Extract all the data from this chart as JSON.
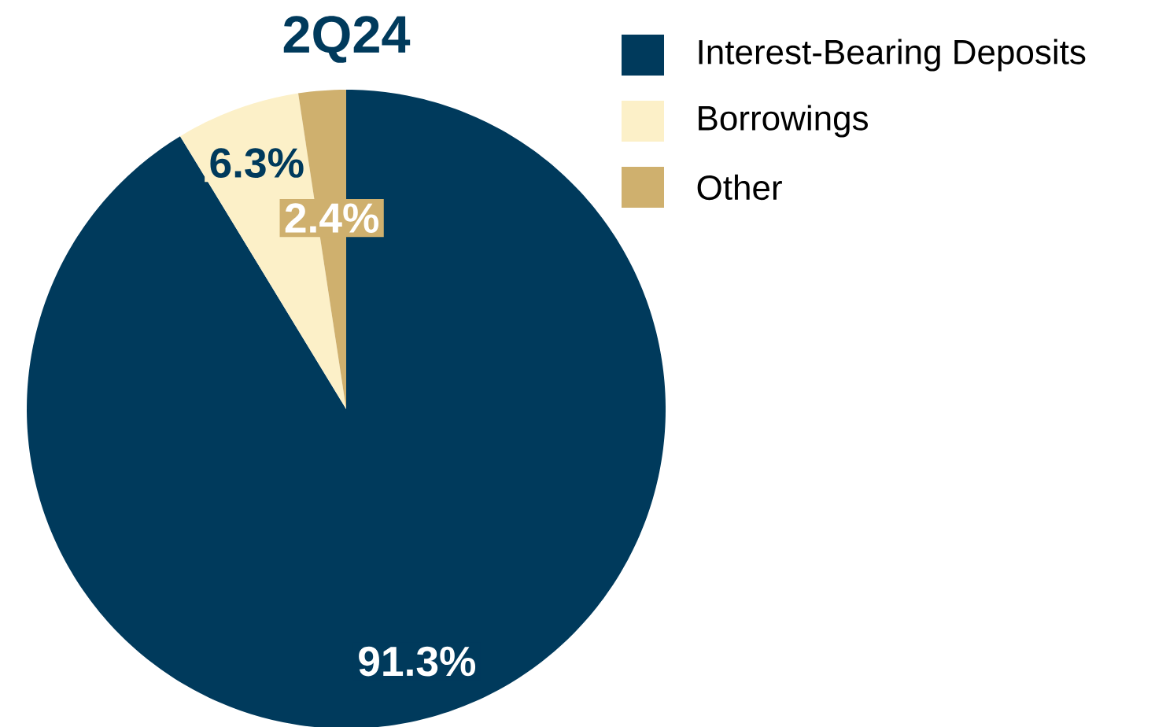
{
  "chart_data": {
    "type": "pie",
    "title": "2Q24",
    "categories": [
      "Interest-Bearing Deposits",
      "Borrowings",
      "Other"
    ],
    "values": [
      91.3,
      6.3,
      2.4
    ],
    "colors": [
      "#003a5c",
      "#fcf0c8",
      "#cfb06e"
    ],
    "value_labels": [
      "91.3%",
      "6.3%",
      "2.4%"
    ],
    "legend": "top right"
  }
}
